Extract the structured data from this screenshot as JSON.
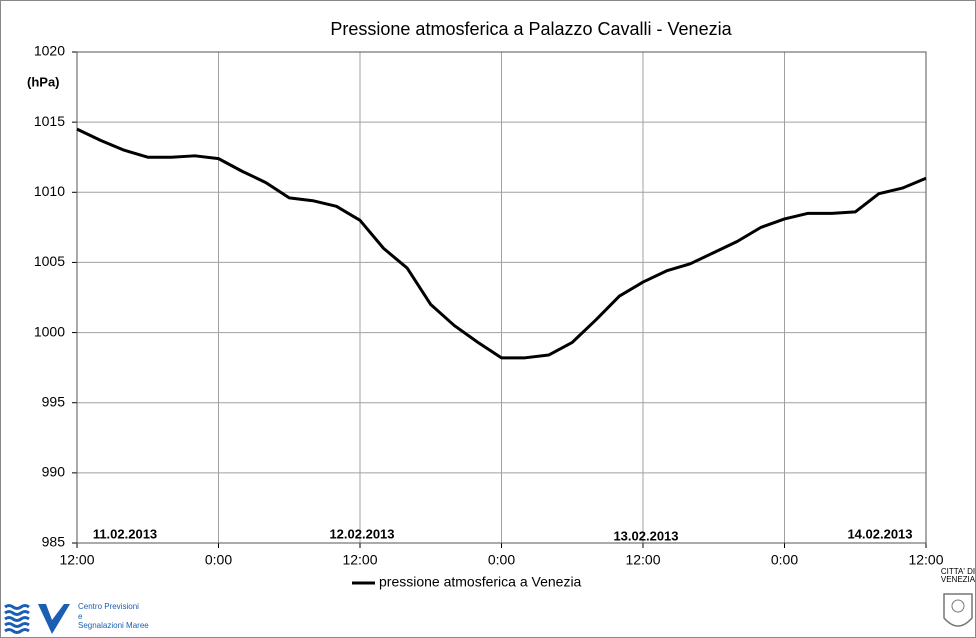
{
  "chart_data": {
    "type": "line",
    "title": "Pressione atmosferica a Palazzo  Cavalli  - Venezia",
    "y_label": "(hPa)",
    "annotations": [
      "11.02.2013",
      "12.02.2013",
      "13.02.2013",
      "14.02.2013"
    ],
    "x": [
      0,
      2,
      4,
      6,
      8,
      10,
      12,
      14,
      16,
      18,
      20,
      22,
      24,
      26,
      28,
      30,
      32,
      34,
      36,
      38,
      40,
      42,
      44,
      46,
      48,
      50,
      52,
      54,
      56,
      58,
      60,
      62,
      64,
      66,
      68,
      70,
      72
    ],
    "series": [
      {
        "name": "pressione atmosferica a Venezia",
        "color": "#000000",
        "values": [
          1014.5,
          1013.7,
          1013.0,
          1012.5,
          1012.5,
          1012.6,
          1012.4,
          1011.5,
          1010.7,
          1009.6,
          1009.4,
          1009.0,
          1008.0,
          1006.0,
          1004.6,
          1002.0,
          1000.5,
          999.3,
          998.2,
          998.2,
          998.4,
          999.3,
          1000.9,
          1002.6,
          1003.6,
          1004.4,
          1004.9,
          1005.7,
          1006.5,
          1007.5,
          1008.1,
          1008.5,
          1008.5,
          1008.6,
          1009.9,
          1010.3,
          1011.0
        ]
      }
    ],
    "xlim": [
      0,
      72
    ],
    "xticks": [
      {
        "value": 0,
        "label": "12:00"
      },
      {
        "value": 12,
        "label": "0:00"
      },
      {
        "value": 24,
        "label": "12:00"
      },
      {
        "value": 36,
        "label": "0:00"
      },
      {
        "value": 48,
        "label": "12:00"
      },
      {
        "value": 60,
        "label": "0:00"
      },
      {
        "value": 72,
        "label": "12:00"
      }
    ],
    "ylim": [
      985,
      1020
    ],
    "yticks": [
      985,
      990,
      995,
      1000,
      1005,
      1010,
      1015,
      1020
    ],
    "grid": true,
    "legend": "bottom",
    "logo_lines": [
      "Centro Previsioni",
      "e",
      "Segnalazioni Maree"
    ],
    "city_lines": [
      "CITTA' DI",
      "VENEZIA"
    ]
  }
}
